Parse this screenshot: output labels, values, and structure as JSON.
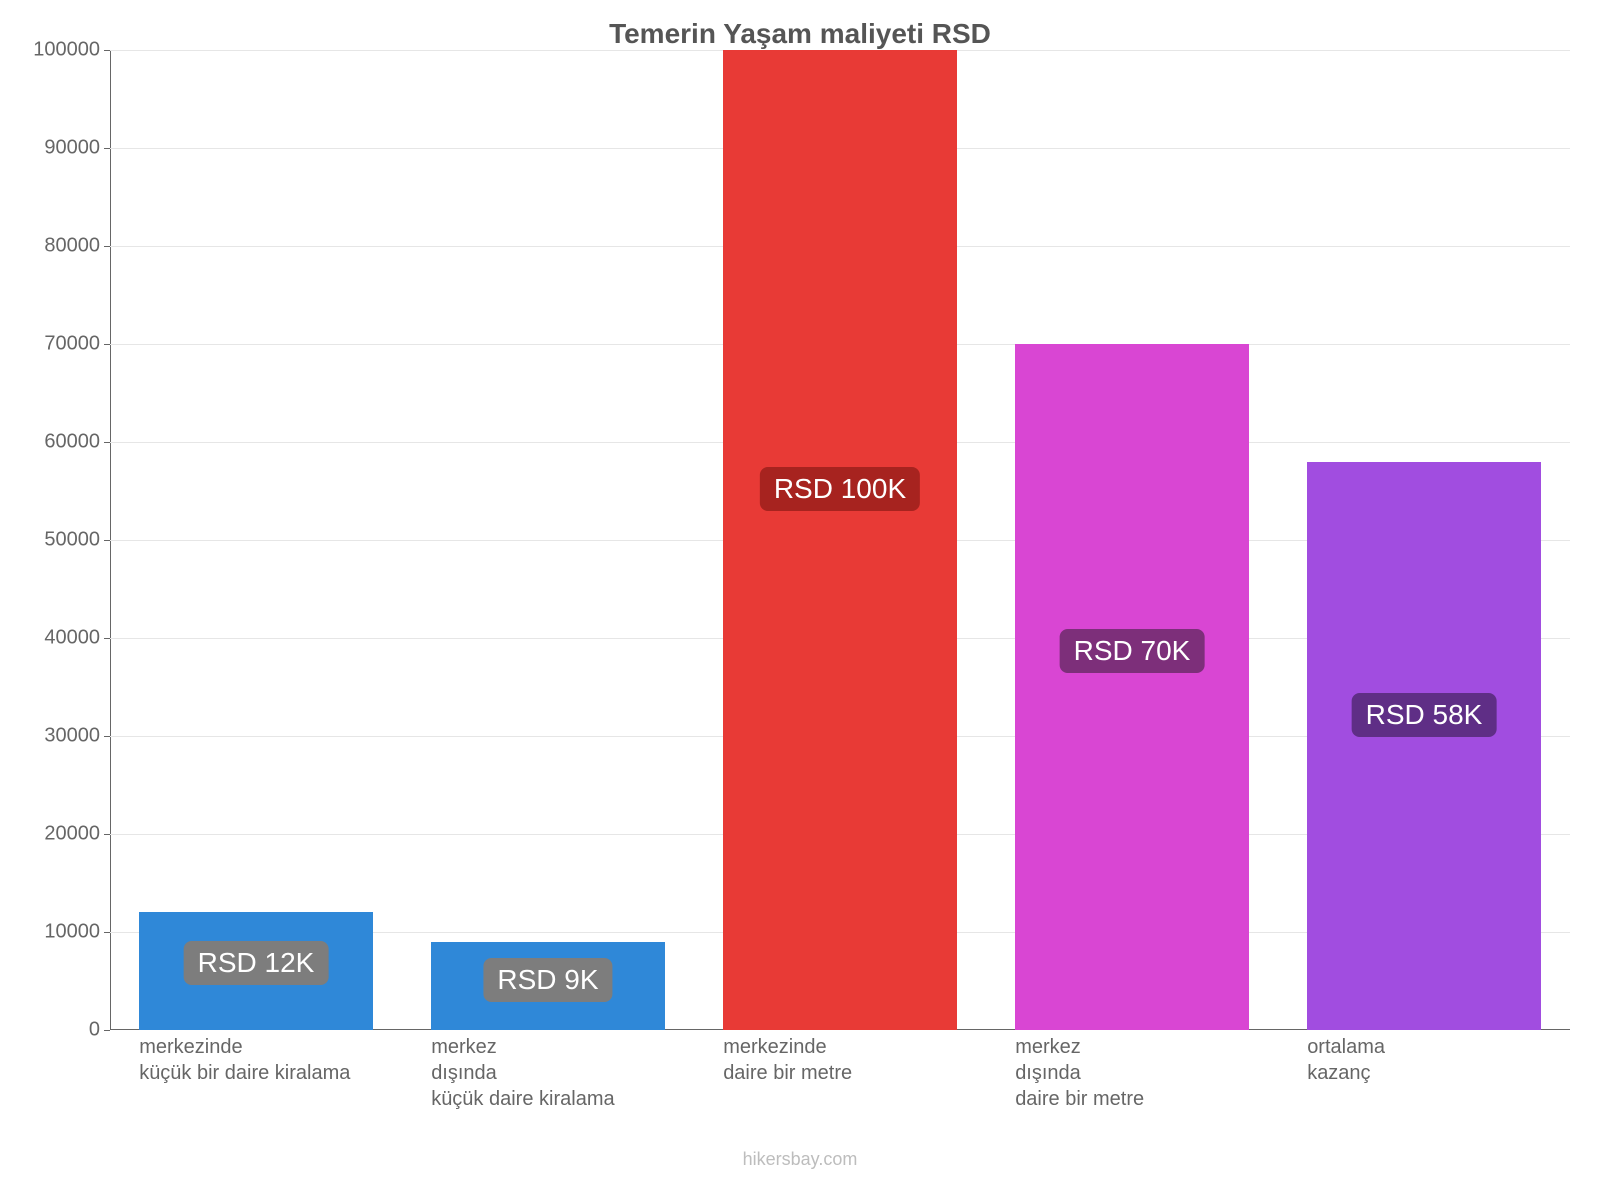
{
  "chart": {
    "title": "Temerin Yaşam maliyeti RSD",
    "title_fontsize": 28,
    "title_color": "#555555",
    "background_color": "#ffffff",
    "grid_color": "#e6e6e6",
    "axis_color": "#666666",
    "label_color": "#666666",
    "yaxis": {
      "min": 0,
      "max": 100000,
      "step": 10000,
      "label_fontsize": 20
    },
    "bars": [
      {
        "value": 12000,
        "value_label": "RSD 12K",
        "color": "#2f88d8",
        "badge_bg": "#7d7d7d",
        "x_label": "merkezinde\nküçük bir daire kiralama"
      },
      {
        "value": 9000,
        "value_label": "RSD 9K",
        "color": "#2f88d8",
        "badge_bg": "#7d7d7d",
        "x_label": "merkez\ndışında\nküçük daire kiralama"
      },
      {
        "value": 100000,
        "value_label": "RSD 100K",
        "color": "#e83a36",
        "badge_bg": "#a7231f",
        "x_label": "merkezinde\ndaire bir metre"
      },
      {
        "value": 70000,
        "value_label": "RSD 70K",
        "color": "#d946d3",
        "badge_bg": "#7d2f7a",
        "x_label": "merkez\ndışında\ndaire bir metre"
      },
      {
        "value": 58000,
        "value_label": "RSD 58K",
        "color": "#a14de0",
        "badge_bg": "#5f2e86",
        "x_label": "ortalama\nkazanç"
      }
    ],
    "bar_value_fontsize": 28,
    "x_label_fontsize": 20,
    "attribution": "hikersbay.com",
    "attribution_color": "#bdbdbd"
  }
}
